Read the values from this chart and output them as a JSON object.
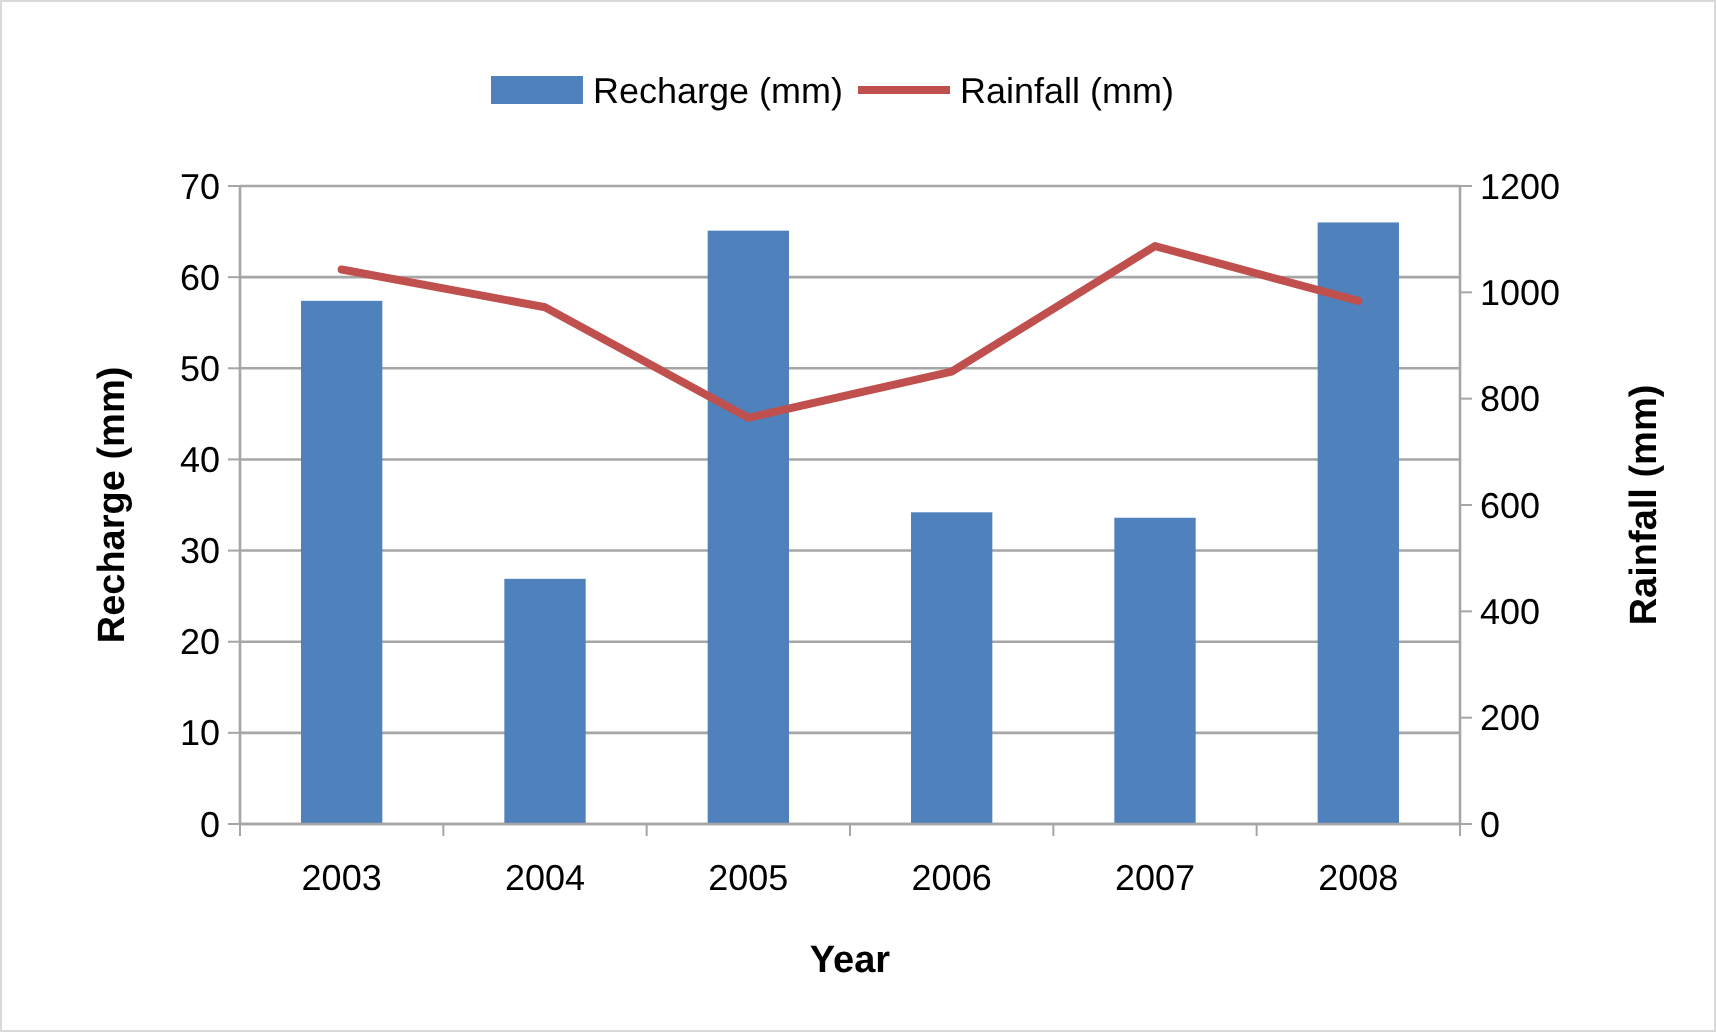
{
  "chart_data": {
    "type": "bar",
    "xlabel": "Year",
    "ylabel": "Recharge (mm)",
    "y2label": "Rainfall (mm)",
    "categories": [
      "2003",
      "2004",
      "2005",
      "2006",
      "2007",
      "2008"
    ],
    "series": [
      {
        "name": "Recharge (mm)",
        "color": "#4f81bd",
        "values": [
          57.4,
          26.9,
          65.1,
          34.2,
          33.6,
          66.0
        ]
      },
      {
        "name": "Rainfall (mm)",
        "type": "line",
        "axis": "y2",
        "color": "#c0504d",
        "values": [
          1043,
          972,
          764,
          851,
          1087,
          984
        ]
      }
    ],
    "ylim": [
      0,
      70
    ],
    "yticks": [
      0,
      10,
      20,
      30,
      40,
      50,
      60,
      70
    ],
    "y2lim": [
      0,
      1200
    ],
    "y2ticks": [
      0,
      200,
      400,
      600,
      800,
      1000,
      1200
    ],
    "grid": "y",
    "legend": "top",
    "line_style": "solid",
    "marker": "none"
  }
}
